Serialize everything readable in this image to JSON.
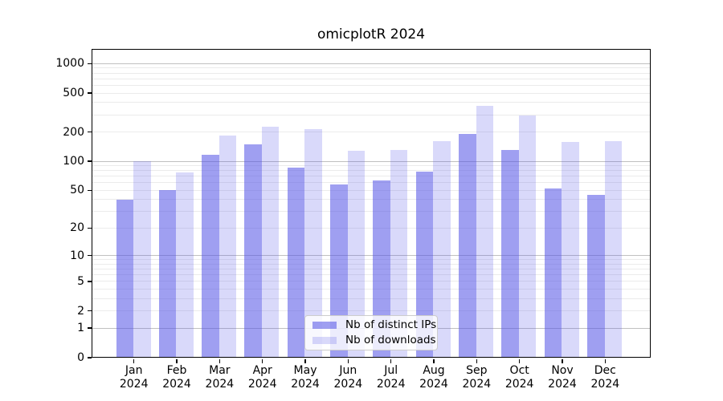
{
  "chart_data": {
    "type": "bar",
    "title": "omicplotR 2024",
    "xlabel": "",
    "ylabel": "",
    "year": "2024",
    "months": [
      "Jan",
      "Feb",
      "Mar",
      "Apr",
      "May",
      "Jun",
      "Jul",
      "Aug",
      "Sep",
      "Oct",
      "Nov",
      "Dec"
    ],
    "series": [
      {
        "name": "Nb of distinct IPs",
        "color": "rgba(80,80,230,0.55)",
        "hex_on_white": "#9e9ef3",
        "values": [
          40,
          50,
          116,
          149,
          86,
          58,
          63,
          78,
          192,
          130,
          52,
          45
        ]
      },
      {
        "name": "Nb of downloads",
        "color": "rgba(80,80,230,0.22)",
        "hex_on_white": "#d8d8f9",
        "values": [
          101,
          77,
          184,
          225,
          213,
          129,
          131,
          161,
          371,
          293,
          157,
          160
        ]
      }
    ],
    "y_ticks": [
      0,
      1,
      2,
      5,
      10,
      20,
      50,
      100,
      200,
      500,
      1000
    ],
    "y_scale": "log10(value+1)",
    "ylim": [
      0,
      1413
    ],
    "grid": true,
    "legend_position": "lower center"
  },
  "colors": {
    "background": "#ffffff",
    "axis": "#000000",
    "major_grid": "#c0c0c0",
    "minor_grid": "#ebebeb",
    "legend_border": "#cccccc",
    "legend_background": "rgba(255,255,255,0.8)",
    "text": "#000000"
  }
}
